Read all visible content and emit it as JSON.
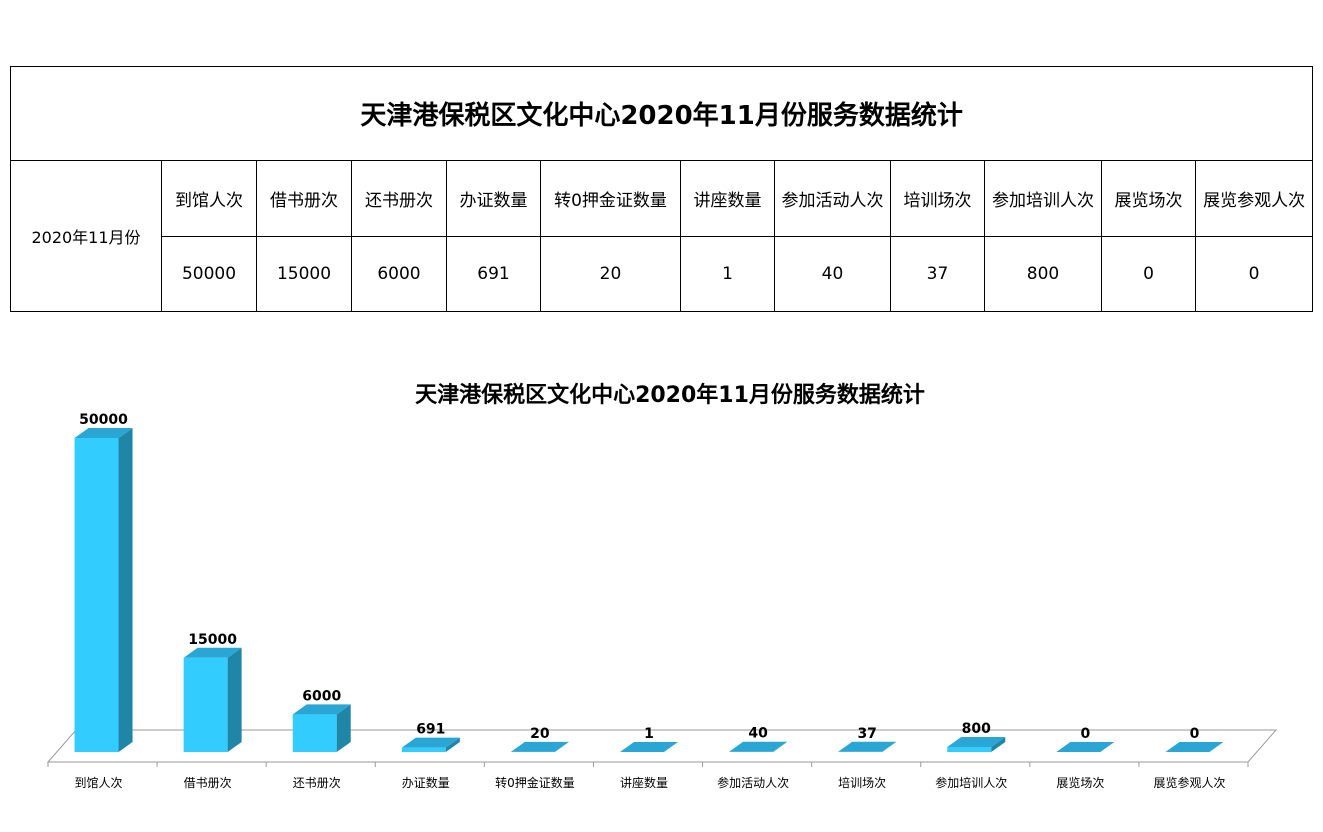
{
  "table": {
    "title": "天津港保税区文化中心2020年11月份服务数据统计",
    "month": "2020年11月份",
    "headers": [
      "到馆人次",
      "借书册次",
      "还书册次",
      "办证数量",
      "转0押金证数量",
      "讲座数量",
      "参加活动人次",
      "培训场次",
      "参加培训人次",
      "展览场次",
      "展览参观人次"
    ],
    "values": [
      "50000",
      "15000",
      "6000",
      "691",
      "20",
      "1",
      "40",
      "37",
      "800",
      "0",
      "0"
    ]
  },
  "chart_data": {
    "type": "bar",
    "title": "天津港保税区文化中心2020年11月份服务数据统计",
    "categories": [
      "到馆人次",
      "借书册次",
      "还书册次",
      "办证数量",
      "转0押金证数量",
      "讲座数量",
      "参加活动人次",
      "培训场次",
      "参加培训人次",
      "展览场次",
      "展览参观人次"
    ],
    "values": [
      50000,
      15000,
      6000,
      691,
      20,
      1,
      40,
      37,
      800,
      0,
      0
    ],
    "xlabel": "",
    "ylabel": "",
    "ylim": [
      0,
      50000
    ],
    "grid": false,
    "legend": "none",
    "colors": {
      "bar_front": "#33ccff",
      "bar_side": "#1f86a8",
      "bar_top": "#2aa6d4",
      "floor_line": "#999999"
    }
  }
}
